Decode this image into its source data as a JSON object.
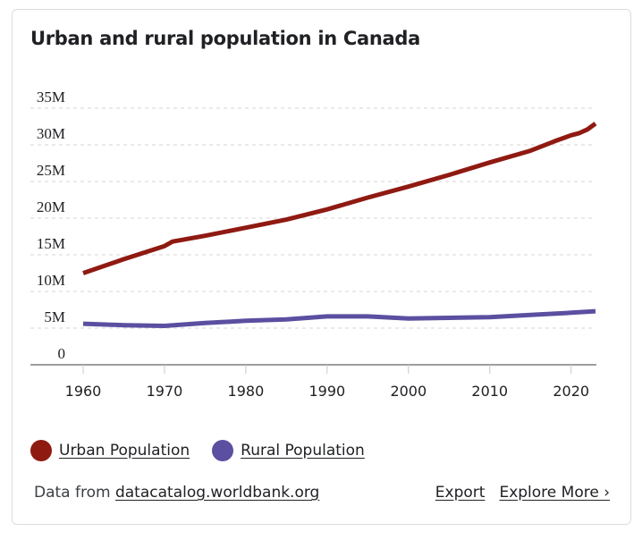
{
  "card": {
    "title": "Urban and rural population in Canada"
  },
  "legend": {
    "items": [
      {
        "label": "Urban Population",
        "color": "#8f1a12"
      },
      {
        "label": "Rural Population",
        "color": "#5a4fa0"
      }
    ]
  },
  "footer": {
    "data_from_label": "Data from",
    "source_link": "datacatalog.worldbank.org",
    "export_label": "Export",
    "explore_label": "Explore More ›"
  },
  "chart_data": {
    "type": "line",
    "title": "Urban and rural population in Canada",
    "xlabel": "",
    "ylabel": "",
    "xlim": [
      1960,
      2023
    ],
    "ylim": [
      0,
      35000000
    ],
    "grid": true,
    "legend_position": "bottom-left",
    "x_ticks": [
      {
        "value": 1960,
        "label": "1960"
      },
      {
        "value": 1970,
        "label": "1970"
      },
      {
        "value": 1980,
        "label": "1980"
      },
      {
        "value": 1990,
        "label": "1990"
      },
      {
        "value": 2000,
        "label": "2000"
      },
      {
        "value": 2010,
        "label": "2010"
      },
      {
        "value": 2020,
        "label": "2020"
      }
    ],
    "y_ticks": [
      {
        "value": 0,
        "label": "0"
      },
      {
        "value": 5000000,
        "label": "5M"
      },
      {
        "value": 10000000,
        "label": "10M"
      },
      {
        "value": 15000000,
        "label": "15M"
      },
      {
        "value": 20000000,
        "label": "20M"
      },
      {
        "value": 25000000,
        "label": "25M"
      },
      {
        "value": 30000000,
        "label": "30M"
      },
      {
        "value": 35000000,
        "label": "35M"
      }
    ],
    "series": [
      {
        "name": "Urban Population",
        "color": "#8f1a12",
        "x": [
          1960,
          1965,
          1970,
          1971,
          1975,
          1980,
          1985,
          1990,
          1995,
          2000,
          2005,
          2010,
          2015,
          2018,
          2020,
          2021,
          2022,
          2023
        ],
        "y": [
          12500000,
          14400000,
          16200000,
          16800000,
          17600000,
          18700000,
          19800000,
          21200000,
          22800000,
          24300000,
          25900000,
          27600000,
          29200000,
          30500000,
          31300000,
          31600000,
          32100000,
          32900000
        ]
      },
      {
        "name": "Rural Population",
        "color": "#5a4fa0",
        "x": [
          1960,
          1965,
          1970,
          1975,
          1980,
          1985,
          1990,
          1995,
          2000,
          2005,
          2010,
          2015,
          2020,
          2023
        ],
        "y": [
          5600000,
          5400000,
          5300000,
          5700000,
          6000000,
          6200000,
          6600000,
          6600000,
          6300000,
          6400000,
          6500000,
          6800000,
          7100000,
          7300000
        ]
      }
    ]
  }
}
